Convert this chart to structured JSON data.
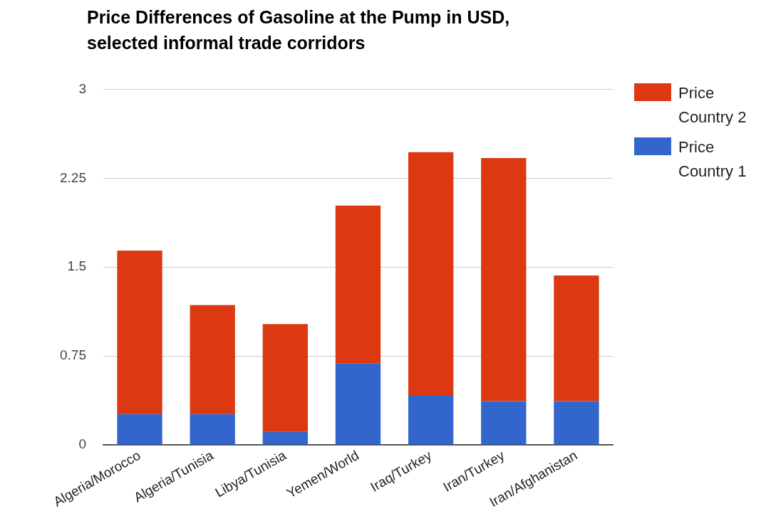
{
  "chart_data": {
    "type": "bar",
    "title": "Price Differences of Gasoline at the Pump in USD, selected informal trade corridors",
    "categories": [
      "Algeria/Morocco",
      "Algeria/Tunisia",
      "Libya/Tunisia",
      "Yemen/World",
      "Iraq/Turkey",
      "Iran/Turkey",
      "Iran/Afghanistan"
    ],
    "stacked": true,
    "series": [
      {
        "name": "Price Country 1",
        "color": "#3366cc",
        "values": [
          0.26,
          0.26,
          0.11,
          0.69,
          0.42,
          0.37,
          0.37
        ]
      },
      {
        "name": "Price Country 2",
        "color": "#dc3912",
        "values": [
          1.38,
          0.92,
          0.91,
          1.33,
          2.05,
          2.05,
          1.06
        ]
      }
    ],
    "ylim": [
      0,
      3
    ],
    "yticks": [
      0,
      {
        "value": 0.75,
        "label": "0.75"
      },
      {
        "value": 1.5,
        "label": "1.5"
      },
      {
        "value": 2.25,
        "label": "2.25"
      },
      3
    ],
    "grid": "y",
    "legend": "top right"
  }
}
